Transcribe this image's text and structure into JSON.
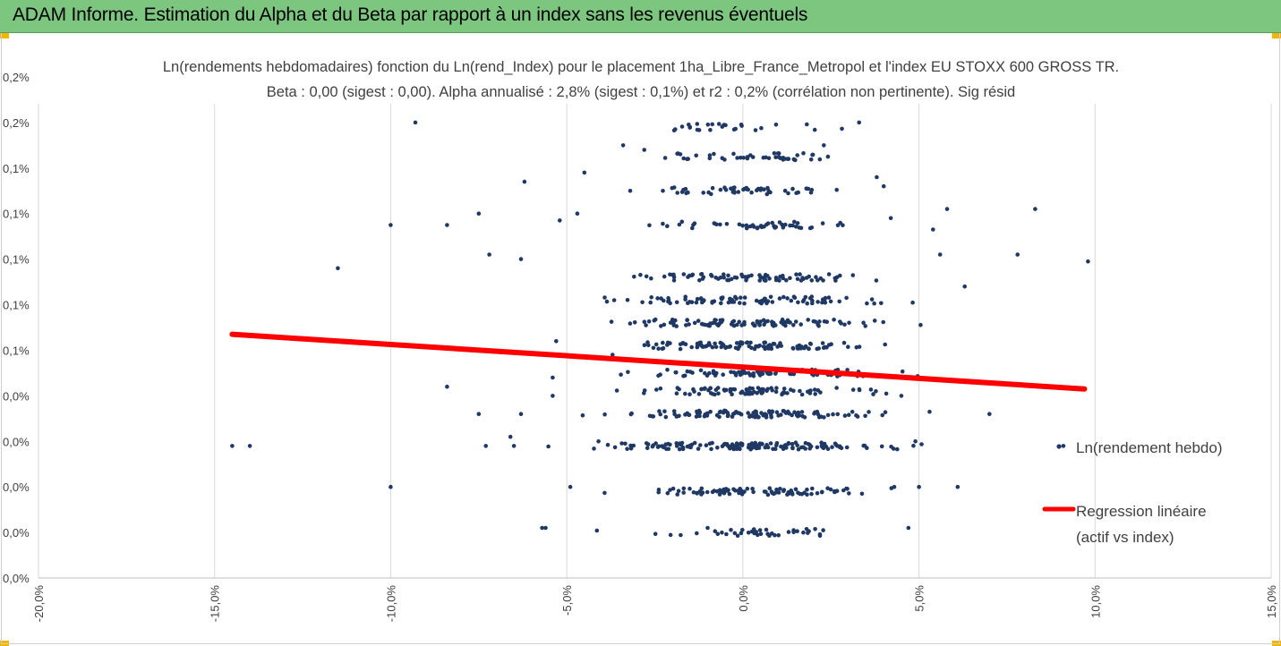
{
  "banner": {
    "title": "ADAM Informe. Estimation du Alpha et du Beta par rapport à un index sans les revenus éventuels",
    "color": "#7dc67f"
  },
  "chart_data": {
    "type": "scatter",
    "title_line1": "Ln(rendements hebdomadaires) fonction du Ln(rend_Index) pour le placement 1ha_Libre_France_Metropol et l'index EU STOXX 600 GROSS TR.",
    "title_line2": "Beta : 0,00 (sigest : 0,00). Alpha annualisé : 2,8% (sigest : 0,1%) et r2 : 0,2% (corrélation non pertinente). Sig résid",
    "x_ticks": [
      "-20,0%",
      "-15,0%",
      "-10,0%",
      "-5,0%",
      "0,0%",
      "5,0%",
      "10,0%",
      "15,0%"
    ],
    "y_ticks": [
      "0,0%",
      "0,0%",
      "0,0%",
      "0,0%",
      "0,0%",
      "0,1%",
      "0,1%",
      "0,1%",
      "0,1%",
      "0,1%",
      "0,2%",
      "0,2%"
    ],
    "xlim": [
      -20,
      15
    ],
    "ylim": [
      0,
      0.22
    ],
    "grid": "vertical",
    "legend_position": "right",
    "series": [
      {
        "name": "Ln(rendement hebdo)",
        "color": "#1f3864",
        "clusters": [
          {
            "x_center": 0.2,
            "y": 0.02,
            "spread": 3.0,
            "count": 40
          },
          {
            "x_center": 0.2,
            "y": 0.038,
            "spread": 3.2,
            "count": 90
          },
          {
            "x_center": 0.2,
            "y": 0.058,
            "spread": 3.6,
            "count": 150
          },
          {
            "x_center": 0.2,
            "y": 0.072,
            "spread": 3.3,
            "count": 110
          },
          {
            "x_center": 0.2,
            "y": 0.082,
            "spread": 3.0,
            "count": 90
          },
          {
            "x_center": 0.2,
            "y": 0.09,
            "spread": 3.2,
            "count": 90
          },
          {
            "x_center": 0.2,
            "y": 0.102,
            "spread": 3.0,
            "count": 110
          },
          {
            "x_center": 0.2,
            "y": 0.112,
            "spread": 3.0,
            "count": 100
          },
          {
            "x_center": 0.2,
            "y": 0.122,
            "spread": 3.0,
            "count": 90
          },
          {
            "x_center": 0.2,
            "y": 0.132,
            "spread": 3.0,
            "count": 80
          },
          {
            "x_center": 0.2,
            "y": 0.155,
            "spread": 2.6,
            "count": 50
          },
          {
            "x_center": 0.2,
            "y": 0.17,
            "spread": 2.4,
            "count": 50
          },
          {
            "x_center": 0.2,
            "y": 0.185,
            "spread": 2.4,
            "count": 45
          },
          {
            "x_center": 0.2,
            "y": 0.198,
            "spread": 2.2,
            "count": 25
          }
        ],
        "outliers": [
          [
            -14.5,
            0.058
          ],
          [
            -14,
            0.058
          ],
          [
            -11.5,
            0.136
          ],
          [
            -10.0,
            0.155
          ],
          [
            -10.0,
            0.04
          ],
          [
            -9.3,
            0.2
          ],
          [
            -8.4,
            0.084
          ],
          [
            -8.4,
            0.155
          ],
          [
            -7.5,
            0.072
          ],
          [
            -7.5,
            0.16
          ],
          [
            -7.2,
            0.142
          ],
          [
            -7.3,
            0.058
          ],
          [
            -6.6,
            0.062
          ],
          [
            -6.5,
            0.058
          ],
          [
            -6.3,
            0.072
          ],
          [
            -6.3,
            0.14
          ],
          [
            -6.2,
            0.174
          ],
          [
            -5.7,
            0.022
          ],
          [
            -5.6,
            0.022
          ],
          [
            -5.4,
            0.08
          ],
          [
            -5.4,
            0.088
          ],
          [
            -5.3,
            0.104
          ],
          [
            -5.2,
            0.157
          ],
          [
            -4.9,
            0.04
          ],
          [
            -4.7,
            0.16
          ],
          [
            -4.5,
            0.178
          ],
          [
            -4.1,
            0.06
          ],
          [
            -3.7,
            0.098
          ],
          [
            -3.4,
            0.19
          ],
          [
            -3.2,
            0.17
          ],
          [
            -2.8,
            0.188
          ],
          [
            -1.5,
            0.198
          ],
          [
            -1.0,
            0.022
          ],
          [
            2.3,
            0.19
          ],
          [
            3.3,
            0.2
          ],
          [
            3.8,
            0.176
          ],
          [
            4.0,
            0.172
          ],
          [
            4.2,
            0.158
          ],
          [
            4.3,
            0.04
          ],
          [
            4.5,
            0.08
          ],
          [
            4.7,
            0.022
          ],
          [
            4.9,
            0.06
          ],
          [
            5.0,
            0.04
          ],
          [
            5.3,
            0.073
          ],
          [
            5.4,
            0.153
          ],
          [
            5.6,
            0.142
          ],
          [
            5.8,
            0.162
          ],
          [
            6.1,
            0.04
          ],
          [
            6.3,
            0.128
          ],
          [
            7.0,
            0.072
          ],
          [
            7.8,
            0.142
          ],
          [
            8.3,
            0.162
          ],
          [
            9.1,
            0.058
          ],
          [
            9.8,
            0.139
          ]
        ]
      },
      {
        "name": "Regression linéaire (actif vs index)",
        "color": "#ff0000",
        "type": "line",
        "points": [
          [
            -14.5,
            0.107
          ],
          [
            9.7,
            0.083
          ]
        ]
      }
    ],
    "legend": {
      "scatter_label": "Ln(rendement hebdo)",
      "line_label_1": "Regression linéaire",
      "line_label_2": "(actif vs index)"
    }
  }
}
